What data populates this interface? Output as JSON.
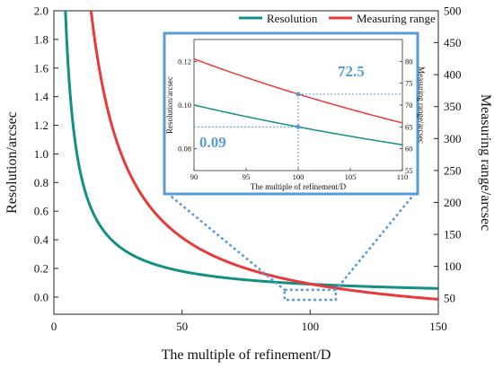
{
  "colors": {
    "resolution": "#138f84",
    "measuring_range": "#e8393b",
    "accent": "#5b9bd5"
  },
  "chart_data": {
    "type": "line",
    "main": {
      "xlabel": "The multiple of refinement/D",
      "ylabel_left": "Resolution/arcsec",
      "ylabel_right": "Measuring range/arcsec",
      "xlim": [
        0,
        150
      ],
      "ylim_left": [
        -0.12,
        2.0
      ],
      "ylim_right": [
        25,
        500
      ],
      "x_ticks": [
        "0",
        "50",
        "100",
        "150"
      ],
      "y_left_ticks": [
        "0.0",
        "0.2",
        "0.4",
        "0.6",
        "0.8",
        "1.0",
        "1.2",
        "1.4",
        "1.6",
        "1.8",
        "2.0"
      ],
      "y_right_ticks": [
        "50",
        "100",
        "150",
        "200",
        "250",
        "300",
        "350",
        "400",
        "450",
        "500"
      ],
      "legend_position": "top-right",
      "series": [
        {
          "name": "Resolution",
          "axis": "left",
          "formula": "y = 9/x"
        },
        {
          "name": "Measuring range",
          "axis": "right",
          "formula": "y = 7250/x"
        }
      ],
      "zoom_box": {
        "x": [
          90,
          110
        ],
        "y_left": [
          0.05,
          -0.02
        ]
      }
    },
    "inset": {
      "xlabel": "The multiple of refinement/D",
      "ylabel_left": "Resolution/arcsec",
      "ylabel_right": "Measuring range/arcsec",
      "xlim": [
        90,
        110
      ],
      "ylim_left": [
        0.07,
        0.13
      ],
      "ylim_right": [
        55,
        85
      ],
      "x_ticks": [
        "90",
        "95",
        "100",
        "105",
        "110"
      ],
      "y_left_ticks": [
        "0.08",
        "0.10",
        "0.12"
      ],
      "y_right_ticks": [
        "55",
        "60",
        "65",
        "70",
        "75",
        "80"
      ],
      "highlight_x": 100,
      "highlight_resolution": 0.09,
      "highlight_range": 72.5,
      "callout_resolution": "0.09",
      "callout_range": "72.5"
    }
  }
}
